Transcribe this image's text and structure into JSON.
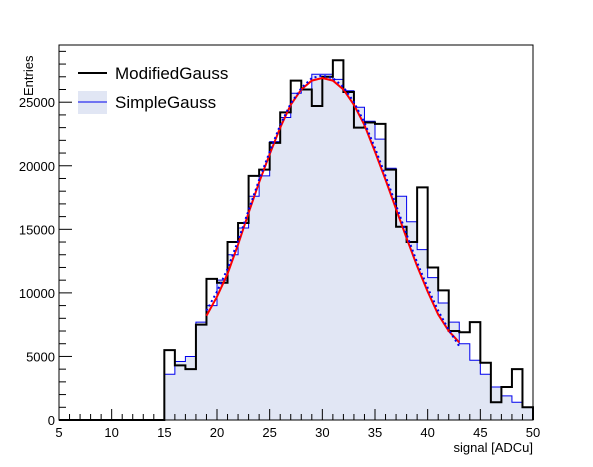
{
  "chart_data": {
    "type": "histogram",
    "x": {
      "label": "signal [ADCu]",
      "range": [
        5,
        50
      ],
      "major_ticks": [
        5,
        10,
        15,
        20,
        25,
        30,
        35,
        40,
        45,
        50
      ],
      "tick_labels": [
        "5",
        "10",
        "15",
        "20",
        "25",
        "30",
        "35",
        "40",
        "45",
        "50"
      ],
      "bin_width": 1
    },
    "y": {
      "label": "Entries",
      "range": [
        0,
        29500
      ],
      "major_ticks": [
        0,
        5000,
        10000,
        15000,
        20000,
        25000
      ],
      "tick_labels": [
        "0",
        "5000",
        "10000",
        "15000",
        "20000",
        "25000"
      ]
    },
    "grid": false,
    "legend_position": "top-left",
    "series": [
      {
        "name": "ModifiedGauss",
        "style": "step",
        "color": "#000000",
        "bin_edges": [
          5,
          6,
          7,
          8,
          9,
          10,
          11,
          12,
          13,
          14,
          15,
          16,
          17,
          18,
          19,
          20,
          21,
          22,
          23,
          24,
          25,
          26,
          27,
          28,
          29,
          30,
          31,
          32,
          33,
          34,
          35,
          36,
          37,
          38,
          39,
          40,
          41,
          42,
          43,
          44,
          45,
          46,
          47,
          48,
          49,
          50
        ],
        "values": [
          0,
          0,
          0,
          0,
          0,
          0,
          0,
          0,
          0,
          0,
          5500,
          4300,
          4000,
          7500,
          11100,
          10800,
          14000,
          15500,
          19200,
          19700,
          21800,
          24200,
          26700,
          26000,
          24700,
          27000,
          28300,
          25800,
          23000,
          23400,
          23300,
          19700,
          15200,
          14000,
          18300,
          12000,
          10200,
          7000,
          6900,
          7700,
          4500,
          1400,
          2600,
          4000,
          1000
        ],
        "fit": {
          "color": "#ff0000",
          "x": [
            19,
            20,
            21,
            22,
            23,
            24,
            25,
            26,
            27,
            28,
            29,
            30,
            31,
            32,
            33,
            34,
            35,
            36,
            37,
            38,
            39,
            40,
            41,
            42,
            43
          ],
          "y": [
            8200,
            9700,
            11500,
            13800,
            16300,
            18700,
            20900,
            23000,
            24800,
            26000,
            26700,
            26900,
            26700,
            26000,
            24800,
            23200,
            21100,
            18900,
            16600,
            14300,
            12100,
            10100,
            8300,
            7000,
            6100
          ]
        }
      },
      {
        "name": "SimpleGauss",
        "style": "step-filled",
        "color": "#0000ee",
        "fill_color": "#e1e6f4",
        "bin_edges": [
          5,
          6,
          7,
          8,
          9,
          10,
          11,
          12,
          13,
          14,
          15,
          16,
          17,
          18,
          19,
          20,
          21,
          22,
          23,
          24,
          25,
          26,
          27,
          28,
          29,
          30,
          31,
          32,
          33,
          34,
          35,
          36,
          37,
          38,
          39,
          40,
          41,
          42,
          43,
          44,
          45,
          46,
          47,
          48,
          49,
          50
        ],
        "values": [
          0,
          0,
          0,
          0,
          0,
          0,
          0,
          0,
          0,
          0,
          3600,
          4600,
          5000,
          7700,
          9000,
          11000,
          13000,
          15100,
          17600,
          19200,
          21900,
          23800,
          25700,
          26000,
          27200,
          27200,
          26800,
          25900,
          24600,
          23500,
          22100,
          19800,
          17600,
          15600,
          13400,
          11200,
          9200,
          7700,
          6000,
          4700,
          3600,
          2600,
          1900,
          1400,
          1000
        ],
        "fit": {
          "color": "#0000ee",
          "dashed": true,
          "x": [
            19,
            20,
            21,
            22,
            23,
            24,
            25,
            26,
            27,
            28,
            29,
            30,
            31,
            32,
            33,
            34,
            35,
            36,
            37,
            38,
            39,
            40,
            41,
            42,
            43
          ],
          "y": [
            8600,
            10100,
            11900,
            14100,
            16500,
            18900,
            21100,
            23200,
            24900,
            26100,
            26900,
            27100,
            26900,
            26200,
            25000,
            23400,
            21400,
            19200,
            16900,
            14600,
            12400,
            10400,
            8600,
            7100,
            5800
          ]
        }
      }
    ]
  }
}
